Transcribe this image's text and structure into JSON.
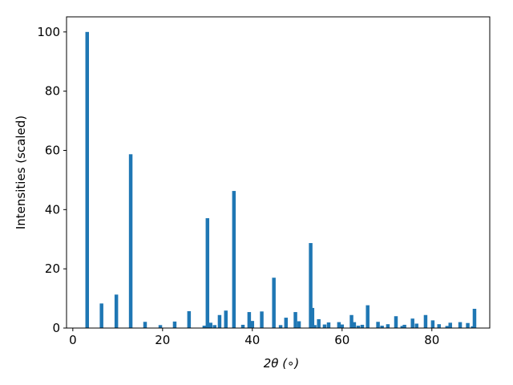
{
  "chart_data": {
    "type": "bar",
    "xlabel": "2θ (∘)",
    "ylabel": "Intensities (scaled)",
    "color": "#1f77b4",
    "x": [
      3.2,
      6.4,
      9.7,
      12.9,
      16.1,
      19.5,
      22.7,
      25.9,
      29.3,
      30.0,
      30.7,
      31.6,
      32.7,
      34.1,
      35.9,
      37.9,
      39.3,
      40.0,
      42.1,
      44.8,
      46.3,
      47.5,
      49.6,
      50.4,
      53.0,
      53.4,
      53.9,
      54.8,
      56.1,
      57.0,
      59.3,
      60.0,
      62.1,
      62.7,
      63.6,
      64.5,
      65.7,
      68.0,
      68.9,
      70.2,
      72.0,
      73.4,
      73.9,
      75.7,
      76.6,
      78.6,
      80.2,
      81.6,
      83.4,
      84.1,
      86.3,
      88.0,
      89.1,
      89.5
    ],
    "values": [
      100,
      8.3,
      11.3,
      58.7,
      2.1,
      1.0,
      2.2,
      5.7,
      0.8,
      37.1,
      1.8,
      1.0,
      4.4,
      5.9,
      46.3,
      1.1,
      5.4,
      2.4,
      5.6,
      17.0,
      1.0,
      3.5,
      5.4,
      2.3,
      28.7,
      6.8,
      1.0,
      3.0,
      1.2,
      1.9,
      2.0,
      1.2,
      4.4,
      2.0,
      0.8,
      1.1,
      7.7,
      2.1,
      0.8,
      1.3,
      4.0,
      0.7,
      1.1,
      3.2,
      1.5,
      4.4,
      2.6,
      1.3,
      0.7,
      1.8,
      2.0,
      1.7,
      0.6,
      6.5
    ],
    "xlim": [
      -1.4,
      92.9
    ],
    "ylim": [
      0,
      105.1
    ],
    "xticks": [
      0,
      20,
      40,
      60,
      80
    ],
    "yticks": [
      0,
      20,
      40,
      60,
      80,
      100
    ]
  }
}
